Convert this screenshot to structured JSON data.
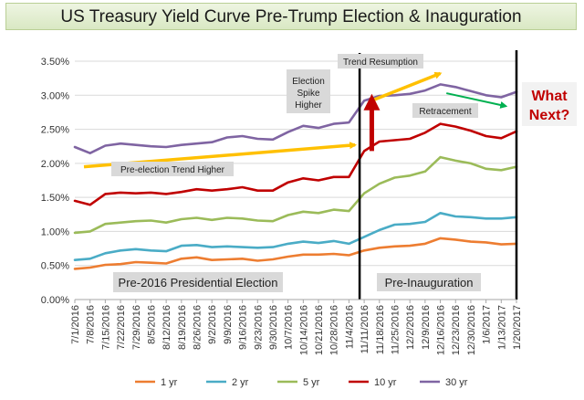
{
  "chart_data": {
    "type": "line",
    "title": "US Treasury Yield Curve Pre-Trump Election & Inauguration",
    "x_tick_labels": [
      "7/1/2016",
      "7/8/2016",
      "7/15/2016",
      "7/22/2016",
      "7/29/2016",
      "8/5/2016",
      "8/12/2016",
      "8/19/2016",
      "8/26/2016",
      "9/2/2016",
      "9/9/2016",
      "9/16/2016",
      "9/23/2016",
      "9/30/2016",
      "10/7/2016",
      "10/14/2016",
      "10/21/2016",
      "10/28/2016",
      "11/4/2016",
      "11/11/2016",
      "11/18/2016",
      "11/25/2016",
      "12/2/2016",
      "12/9/2016",
      "12/16/2016",
      "12/23/2016",
      "12/30/2016",
      "1/6/2017",
      "1/13/2017",
      "1/20/2017"
    ],
    "y_tick_labels": [
      "0.00%",
      "0.50%",
      "1.00%",
      "1.50%",
      "2.00%",
      "2.50%",
      "3.00%",
      "3.50%"
    ],
    "ylim": [
      0,
      3.5
    ],
    "grid": "horizontal",
    "legend": "bottom",
    "series": [
      {
        "name": "1 yr",
        "color": "#ed7d31",
        "values": [
          0.45,
          0.47,
          0.51,
          0.52,
          0.55,
          0.54,
          0.53,
          0.6,
          0.62,
          0.58,
          0.59,
          0.6,
          0.57,
          0.59,
          0.63,
          0.66,
          0.66,
          0.67,
          0.65,
          0.72,
          0.76,
          0.78,
          0.79,
          0.82,
          0.9,
          0.88,
          0.85,
          0.84,
          0.81,
          0.82
        ]
      },
      {
        "name": "2 yr",
        "color": "#4aacc6",
        "values": [
          0.58,
          0.6,
          0.68,
          0.72,
          0.74,
          0.72,
          0.71,
          0.79,
          0.8,
          0.77,
          0.78,
          0.77,
          0.76,
          0.77,
          0.82,
          0.85,
          0.83,
          0.86,
          0.82,
          0.92,
          1.02,
          1.1,
          1.11,
          1.14,
          1.27,
          1.22,
          1.21,
          1.19,
          1.19,
          1.21
        ]
      },
      {
        "name": "5 yr",
        "color": "#9bbb59",
        "values": [
          0.98,
          1.0,
          1.11,
          1.13,
          1.15,
          1.16,
          1.13,
          1.18,
          1.2,
          1.17,
          1.2,
          1.19,
          1.16,
          1.15,
          1.24,
          1.29,
          1.27,
          1.32,
          1.3,
          1.56,
          1.7,
          1.79,
          1.82,
          1.88,
          2.09,
          2.04,
          2.0,
          1.92,
          1.9,
          1.95
        ]
      },
      {
        "name": "10 yr",
        "color": "#c00000",
        "values": [
          1.45,
          1.39,
          1.55,
          1.57,
          1.56,
          1.57,
          1.55,
          1.58,
          1.62,
          1.6,
          1.62,
          1.65,
          1.6,
          1.6,
          1.72,
          1.78,
          1.75,
          1.8,
          1.8,
          2.18,
          2.32,
          2.34,
          2.36,
          2.45,
          2.58,
          2.54,
          2.48,
          2.4,
          2.37,
          2.47
        ]
      },
      {
        "name": "30 yr",
        "color": "#7f64a2",
        "values": [
          2.24,
          2.15,
          2.26,
          2.29,
          2.27,
          2.25,
          2.24,
          2.27,
          2.29,
          2.31,
          2.38,
          2.4,
          2.36,
          2.35,
          2.46,
          2.55,
          2.52,
          2.58,
          2.6,
          2.92,
          2.99,
          3.0,
          3.02,
          3.07,
          3.16,
          3.12,
          3.06,
          3.0,
          2.97,
          3.05
        ]
      }
    ],
    "annotations": {
      "pre_election_trend": "Pre-election Trend Higher",
      "election_spike": [
        "Election",
        "Spike",
        "Higher"
      ],
      "trend_resumption": "Trend Resumption",
      "retracement": "Retracement",
      "what_next": [
        "What",
        "Next?"
      ],
      "period_pre": "Pre-2016 Presidential Election",
      "period_post": "Pre-Inauguration"
    }
  }
}
